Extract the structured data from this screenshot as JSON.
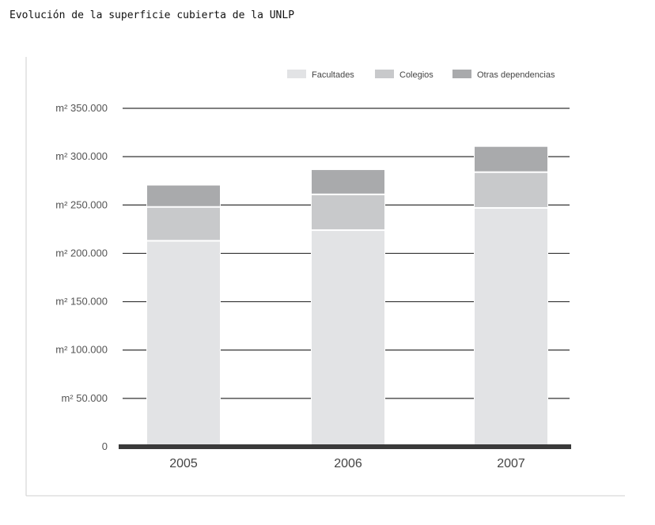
{
  "page": {
    "title": "Evolución de la superficie cubierta de la UNLP"
  },
  "chart_data": {
    "type": "bar",
    "stacked": true,
    "categories": [
      "2005",
      "2006",
      "2007"
    ],
    "series": [
      {
        "name": "Facultades",
        "values": [
          213000,
          224000,
          247000
        ],
        "color": "#e2e3e5"
      },
      {
        "name": "Colegios",
        "values": [
          35000,
          37000,
          37000
        ],
        "color": "#c8c9cb"
      },
      {
        "name": "Otras dependencias",
        "values": [
          23000,
          26000,
          27000
        ],
        "color": "#a9aaac"
      }
    ],
    "yticks": [
      "0",
      "m² 50.000",
      "m² 100.000",
      "m² 150.000",
      "m² 200.000",
      "m² 250.000",
      "m² 300.000",
      "m² 350.000"
    ],
    "ylim": [
      0,
      350000
    ],
    "grid": true,
    "legend_position": "top-right",
    "title": "",
    "xlabel": "",
    "ylabel": ""
  }
}
